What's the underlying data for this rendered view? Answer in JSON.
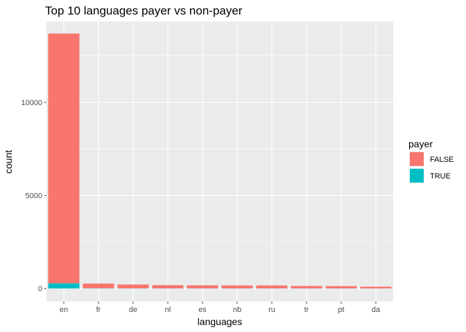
{
  "chart_data": {
    "type": "bar",
    "stacked": true,
    "title": "Top 10 languages payer vs non-payer",
    "xlabel": "languages",
    "ylabel": "count",
    "categories": [
      "en",
      "fr",
      "de",
      "nl",
      "es",
      "nb",
      "ru",
      "tr",
      "pt",
      "da"
    ],
    "series": [
      {
        "name": "FALSE",
        "color": "#f8766d",
        "values": [
          13420,
          255,
          205,
          175,
          165,
          160,
          160,
          130,
          125,
          95
        ]
      },
      {
        "name": "TRUE",
        "color": "#00bfc4",
        "values": [
          280,
          12,
          10,
          8,
          8,
          6,
          8,
          6,
          6,
          4
        ]
      }
    ],
    "ylim": [
      -700,
      14350
    ],
    "yticks": [
      0,
      5000,
      10000
    ],
    "ytick_labels": [
      "0",
      "5000",
      "10000"
    ],
    "legend": {
      "title": "payer",
      "position": "right"
    },
    "grid": true,
    "panel_background": "#ebebeb",
    "grid_color": "#ffffff"
  }
}
